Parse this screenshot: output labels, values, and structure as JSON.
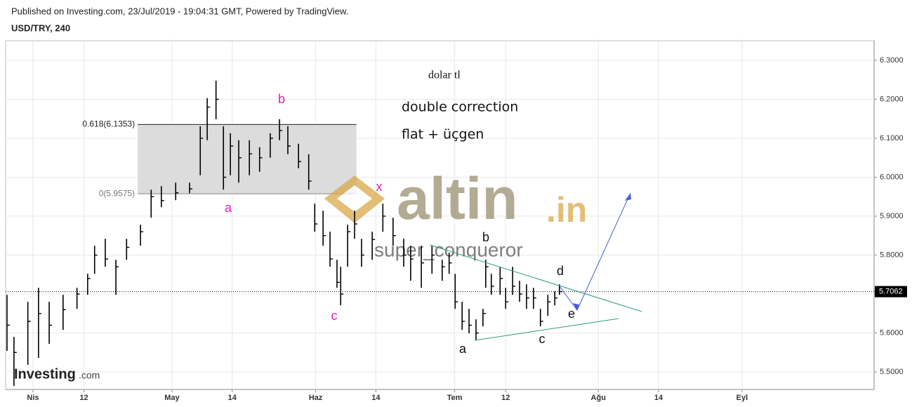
{
  "header": {
    "published": "Published on Investing.com, 23/Jul/2019 - 19:04:31 GMT, Powered by TradingView.",
    "symbol": "USD/TRY, 240"
  },
  "watermark": {
    "brand": "altin",
    "suffix": ".in",
    "user": "super_conqueror",
    "logo": "Investing",
    "logo_suffix": ".com"
  },
  "chart_data": {
    "type": "ohlc",
    "color": "#000000",
    "x": [
      -5.6,
      -4.1,
      -1.1,
      1.2,
      3.5,
      6.5,
      9.5,
      11.8,
      13.3,
      15.6,
      17.9,
      20.2,
      23.2,
      25.5,
      27.7,
      30.8,
      33.8,
      36.1,
      37.6,
      39.5,
      41.1,
      42.6,
      44.4,
      46.7,
      48.9,
      51.2,
      53.2,
      55.0,
      57.3,
      59.5,
      60.8,
      62.6,
      64.1,
      65.6,
      66.4,
      67.9,
      69.4,
      70.9,
      73.2,
      75.5,
      77.7,
      80.0,
      81.5,
      83.8,
      86.1,
      88.3,
      89.8,
      91.1,
      92.6,
      94.1,
      95.6,
      97.1,
      97.7,
      98.9,
      100.8,
      102.0,
      103.5,
      105.0,
      106.5,
      108.0,
      109.5,
      111.1,
      112.6,
      113.6
    ],
    "high": [
      5.698,
      5.59,
      5.68,
      5.716,
      5.68,
      5.698,
      5.716,
      5.752,
      5.824,
      5.842,
      5.788,
      5.842,
      5.878,
      5.968,
      5.977,
      5.986,
      5.986,
      6.131,
      6.203,
      6.248,
      6.131,
      6.113,
      6.095,
      6.095,
      6.077,
      6.113,
      6.149,
      6.131,
      6.086,
      6.059,
      5.932,
      5.914,
      5.86,
      5.788,
      5.77,
      5.878,
      5.914,
      5.842,
      5.86,
      5.932,
      5.896,
      5.842,
      5.824,
      5.824,
      5.824,
      5.788,
      5.806,
      5.752,
      5.68,
      5.662,
      5.635,
      5.662,
      5.788,
      5.752,
      5.77,
      5.716,
      5.77,
      5.734,
      5.725,
      5.716,
      5.662,
      5.698,
      5.707,
      5.725
    ],
    "low": [
      5.554,
      5.464,
      5.518,
      5.536,
      5.572,
      5.608,
      5.662,
      5.698,
      5.752,
      5.77,
      5.698,
      5.788,
      5.824,
      5.896,
      5.923,
      5.941,
      5.959,
      6.005,
      6.095,
      6.149,
      5.968,
      6.005,
      5.986,
      6.005,
      6.014,
      6.05,
      6.095,
      6.059,
      6.023,
      5.968,
      5.86,
      5.824,
      5.77,
      5.716,
      5.671,
      5.77,
      5.842,
      5.77,
      5.788,
      5.86,
      5.824,
      5.77,
      5.734,
      5.716,
      5.752,
      5.734,
      5.752,
      5.662,
      5.608,
      5.599,
      5.581,
      5.617,
      5.716,
      5.698,
      5.698,
      5.662,
      5.698,
      5.68,
      5.662,
      5.662,
      5.617,
      5.644,
      5.671,
      5.698
    ],
    "close": [
      5.62,
      5.55,
      5.63,
      5.65,
      5.62,
      5.66,
      5.7,
      5.74,
      5.8,
      5.79,
      5.77,
      5.82,
      5.86,
      5.95,
      5.94,
      5.96,
      5.97,
      6.1,
      6.18,
      6.2,
      6.0,
      6.08,
      6.05,
      6.06,
      6.05,
      6.1,
      6.12,
      6.08,
      6.04,
      5.99,
      5.88,
      5.85,
      5.79,
      5.73,
      5.7,
      5.86,
      5.88,
      5.8,
      5.84,
      5.9,
      5.85,
      5.8,
      5.79,
      5.78,
      5.8,
      5.77,
      5.78,
      5.68,
      5.63,
      5.62,
      5.6,
      5.65,
      5.77,
      5.72,
      5.74,
      5.68,
      5.72,
      5.7,
      5.69,
      5.69,
      5.63,
      5.68,
      5.69,
      5.7062
    ],
    "last_price": 5.7062,
    "xlim": [
      -5.9,
      181.5
    ],
    "xticks": [
      {
        "value": 0,
        "label": "Nis"
      },
      {
        "value": 11,
        "label": "12"
      },
      {
        "value": 30,
        "label": "May"
      },
      {
        "value": 43,
        "label": "14"
      },
      {
        "value": 61,
        "label": "Haz"
      },
      {
        "value": 74,
        "label": "14"
      },
      {
        "value": 91,
        "label": "Tem"
      },
      {
        "value": 102,
        "label": "12"
      },
      {
        "value": 122,
        "label": "Ağu"
      },
      {
        "value": 135,
        "label": "14"
      },
      {
        "value": 153,
        "label": "Eyl"
      }
    ],
    "ylim": [
      5.455,
      6.3505
    ],
    "yticks": [
      {
        "value": 5.5,
        "label": "5.5000"
      },
      {
        "value": 5.6,
        "label": "5.6000"
      },
      {
        "value": 5.7,
        "label": "5.7000"
      },
      {
        "value": 5.8,
        "label": "5.8000"
      },
      {
        "value": 5.9,
        "label": "5.9000"
      },
      {
        "value": 6.0,
        "label": "6.0000"
      },
      {
        "value": 6.1,
        "label": "6.1000"
      },
      {
        "value": 6.2,
        "label": "6.2000"
      },
      {
        "value": 6.3,
        "label": "6.3000"
      }
    ],
    "grid": true,
    "fib": {
      "x": [
        22.6,
        69.8
      ],
      "levels": [
        {
          "value": 6.1353,
          "label": "0.618(6.1353)"
        },
        {
          "value": 5.9575,
          "label": "0(5.9575)"
        }
      ]
    },
    "notes": [
      "dolar tl",
      "double correction",
      "flat + üçgen"
    ],
    "waves": [
      "b",
      "a",
      "x",
      "c",
      "b",
      "d",
      "e",
      "c",
      "a"
    ]
  }
}
